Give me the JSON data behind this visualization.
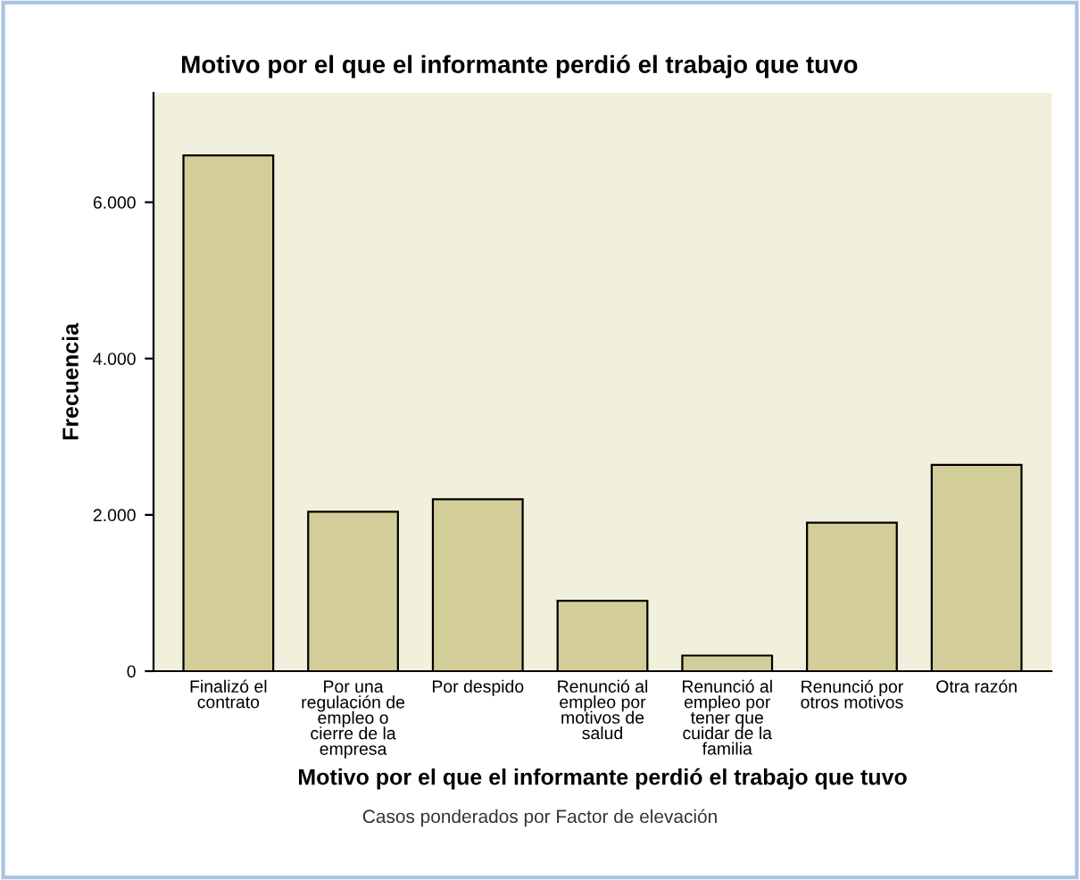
{
  "chart_data": {
    "type": "bar",
    "title": "Motivo por el que el informante perdió el trabajo que tuvo",
    "xlabel": "Motivo por el que el informante perdió el trabajo que tuvo",
    "ylabel": "Frecuencia",
    "annotations": [
      "Casos ponderados por Factor de elevación"
    ],
    "categories": [
      "Finalizó el\ncontrato",
      "Por una\nregulación de\nempleo o\ncierre de la\nempresa",
      "Por despido",
      "Renunció al\nempleo por\nmotivos de\nsalud",
      "Renunció al\nempleo por\ntener que\ncuidar de la\nfamilia",
      "Renunció por\notros motivos",
      "Otra razón"
    ],
    "values": [
      6600,
      2040,
      2200,
      900,
      200,
      1900,
      2640
    ],
    "color": "#d3ce99",
    "ylim": [
      0,
      7400
    ],
    "yticks": [
      {
        "value": 0,
        "label": "0"
      },
      {
        "value": 2000,
        "label": "2.000"
      },
      {
        "value": 4000,
        "label": "4.000"
      },
      {
        "value": 6000,
        "label": "6.000"
      }
    ],
    "grid": false
  }
}
